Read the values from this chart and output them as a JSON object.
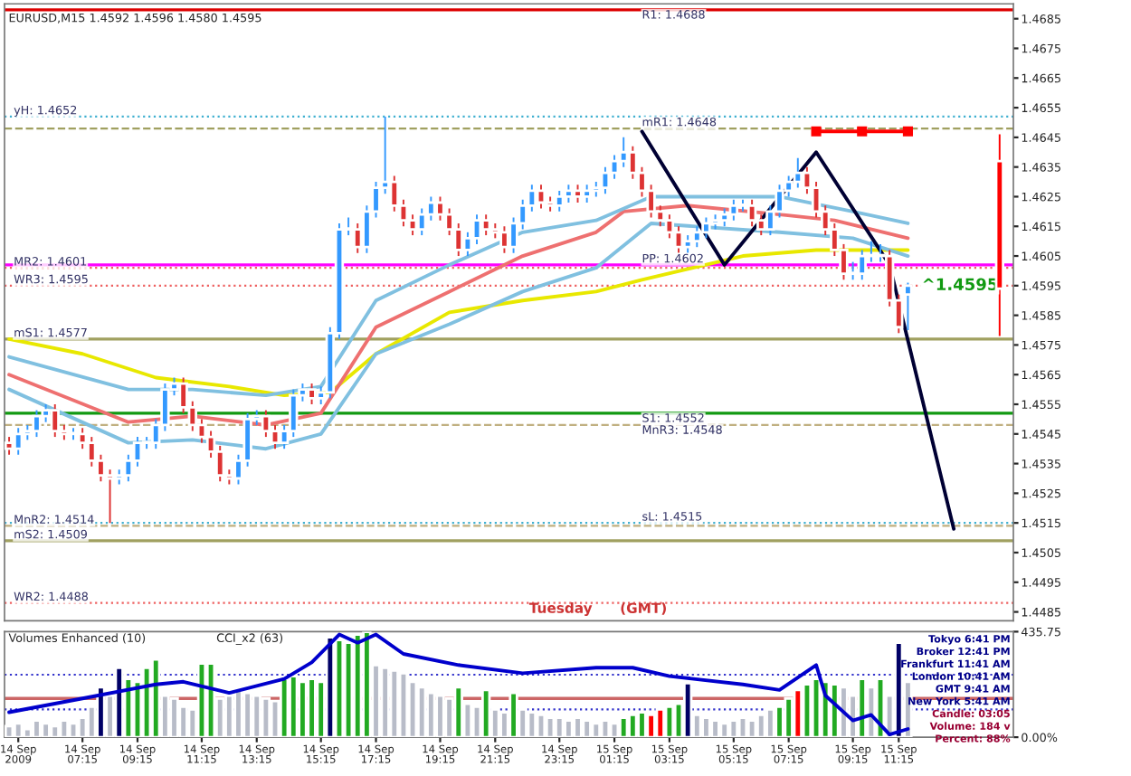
{
  "chart_data": [
    {
      "type": "candlestick",
      "title": "EURUSD,M15 1.4592 1.4596 1.4580 1.4595",
      "categories": [
        null,
        null,
        null,
        null,
        null,
        null,
        null,
        null,
        null,
        null,
        null,
        null,
        null,
        null,
        null,
        null,
        null,
        null,
        null,
        null,
        null,
        null,
        null,
        null,
        null,
        null,
        null,
        null,
        null,
        null,
        null,
        null,
        null,
        null,
        null,
        null,
        null,
        null,
        null,
        null,
        null,
        null,
        null,
        null,
        null,
        null,
        null,
        null,
        null,
        null,
        null,
        null,
        null,
        null,
        null,
        null,
        null,
        null,
        null,
        null,
        null,
        null,
        null,
        null,
        null,
        null,
        null,
        null,
        null,
        null,
        null,
        null,
        null,
        null,
        null,
        null,
        null,
        null,
        null,
        null,
        null,
        null,
        null,
        null,
        null,
        null,
        null,
        null,
        null,
        null,
        null,
        null,
        null,
        null,
        null,
        null,
        null,
        null,
        null,
        null,
        null,
        null,
        null,
        null,
        null,
        null,
        null,
        null,
        null,
        null
      ],
      "colors": [
        "#dd3333",
        "#3399ff",
        "#3399ff",
        "#3399ff",
        "#3399ff",
        "#dd3333",
        "#dd3333",
        "#3399ff",
        "#dd3333",
        "#dd3333",
        "#dd3333",
        "#dd3333",
        "#3399ff",
        "#3399ff",
        "#3399ff",
        "#3399ff",
        "#3399ff",
        "#3399ff",
        "#3399ff",
        "#dd3333",
        "#dd3333",
        "#dd3333",
        "#dd3333",
        "#dd3333",
        "#dd3333",
        "#3399ff",
        "#3399ff",
        "#3399ff",
        "#dd3333",
        "#dd3333",
        "#3399ff",
        "#3399ff",
        "#3399ff",
        "#dd3333",
        "#3399ff",
        "#3399ff",
        "#3399ff",
        "#3399ff",
        "#dd3333",
        "#3399ff",
        "#3399ff",
        "#3399ff",
        "#dd3333",
        "#dd3333",
        "#dd3333",
        "#3399ff",
        "#3399ff",
        "#dd3333",
        "#dd3333",
        "#dd3333",
        "#3399ff",
        "#3399ff",
        "#dd3333",
        "#dd3333",
        "#dd3333",
        "#3399ff",
        "#3399ff",
        "#3399ff",
        "#dd3333",
        "#dd3333",
        "#3399ff",
        "#3399ff",
        "#dd3333",
        "#3399ff",
        "#3399ff",
        "#3399ff",
        "#3399ff",
        "#3399ff",
        "#dd3333",
        "#dd3333",
        "#dd3333",
        "#dd3333",
        "#dd3333",
        "#dd3333",
        "#3399ff",
        "#3399ff",
        "#3399ff",
        "#3399ff",
        "#3399ff",
        "#3399ff",
        "#3399ff",
        "#dd3333",
        "#dd3333",
        "#3399ff",
        "#3399ff",
        "#3399ff",
        "#3399ff",
        "#dd3333",
        "#dd3333",
        "#dd3333",
        "#dd3333",
        "#dd3333",
        "#3399ff",
        "#3399ff",
        "#3399ff",
        "#3399ff",
        "#dd3333",
        "#dd3333",
        "#3399ff",
        null,
        null,
        null,
        null,
        null,
        null,
        null,
        null,
        null,
        "#ff0000",
        null
      ],
      "ohlc": [
        [
          1.4542,
          1.4544,
          1.4538,
          1.454
        ],
        [
          1.454,
          1.4547,
          1.4538,
          1.4545
        ],
        [
          1.4545,
          1.4548,
          1.4543,
          1.4546
        ],
        [
          1.4546,
          1.4553,
          1.4544,
          1.4551
        ],
        [
          1.4551,
          1.4555,
          1.4549,
          1.4553
        ],
        [
          1.4553,
          1.4555,
          1.4544,
          1.4546
        ],
        [
          1.4546,
          1.4548,
          1.4543,
          1.4545
        ],
        [
          1.4545,
          1.4547,
          1.4543,
          1.4545
        ],
        [
          1.4545,
          1.4547,
          1.454,
          1.4542
        ],
        [
          1.4542,
          1.4544,
          1.4534,
          1.4536
        ],
        [
          1.4536,
          1.4538,
          1.4529,
          1.4531
        ],
        [
          1.4531,
          1.4533,
          1.4515,
          1.453
        ],
        [
          1.453,
          1.4533,
          1.4528,
          1.4531
        ],
        [
          1.4531,
          1.4538,
          1.4529,
          1.4536
        ],
        [
          1.4536,
          1.4544,
          1.4534,
          1.4542
        ],
        [
          1.4542,
          1.4544,
          1.454,
          1.4542
        ],
        [
          1.4542,
          1.455,
          1.454,
          1.4548
        ],
        [
          1.4548,
          1.4562,
          1.4546,
          1.456
        ],
        [
          1.456,
          1.4564,
          1.4558,
          1.4562
        ],
        [
          1.4562,
          1.4564,
          1.4552,
          1.4554
        ],
        [
          1.4554,
          1.4556,
          1.4546,
          1.4548
        ],
        [
          1.4548,
          1.455,
          1.4542,
          1.4544
        ],
        [
          1.4544,
          1.4546,
          1.4537,
          1.4539
        ],
        [
          1.4539,
          1.4541,
          1.4529,
          1.4531
        ],
        [
          1.4531,
          1.4533,
          1.4528,
          1.453
        ],
        [
          1.453,
          1.4538,
          1.4528,
          1.4536
        ],
        [
          1.4536,
          1.4552,
          1.4534,
          1.455
        ],
        [
          1.455,
          1.4553,
          1.4548,
          1.4551
        ],
        [
          1.4551,
          1.4553,
          1.4544,
          1.4546
        ],
        [
          1.4546,
          1.4548,
          1.454,
          1.4542
        ],
        [
          1.4542,
          1.4548,
          1.454,
          1.4546
        ],
        [
          1.4546,
          1.456,
          1.4544,
          1.4558
        ],
        [
          1.4558,
          1.4562,
          1.4556,
          1.456
        ],
        [
          1.456,
          1.4562,
          1.4555,
          1.4557
        ],
        [
          1.4557,
          1.4561,
          1.4555,
          1.4559
        ],
        [
          1.4559,
          1.4581,
          1.4557,
          1.4579
        ],
        [
          1.4579,
          1.4616,
          1.4577,
          1.4614
        ],
        [
          1.4614,
          1.4618,
          1.4612,
          1.4614
        ],
        [
          1.4614,
          1.4616,
          1.4606,
          1.4608
        ],
        [
          1.4608,
          1.4622,
          1.4606,
          1.462
        ],
        [
          1.462,
          1.463,
          1.4618,
          1.4628
        ],
        [
          1.4628,
          1.4652,
          1.4626,
          1.463
        ],
        [
          1.463,
          1.4632,
          1.462,
          1.4622
        ],
        [
          1.4622,
          1.4624,
          1.4615,
          1.4617
        ],
        [
          1.4617,
          1.4619,
          1.4612,
          1.4614
        ],
        [
          1.4614,
          1.4621,
          1.4612,
          1.4619
        ],
        [
          1.4619,
          1.4625,
          1.4617,
          1.4623
        ],
        [
          1.4623,
          1.4625,
          1.4617,
          1.4619
        ],
        [
          1.4619,
          1.4621,
          1.4612,
          1.4614
        ],
        [
          1.4614,
          1.4616,
          1.4605,
          1.4607
        ],
        [
          1.4607,
          1.4613,
          1.4605,
          1.4611
        ],
        [
          1.4611,
          1.4619,
          1.4609,
          1.4617
        ],
        [
          1.4617,
          1.4619,
          1.4612,
          1.4614
        ],
        [
          1.4614,
          1.4616,
          1.4611,
          1.4613
        ],
        [
          1.4613,
          1.4615,
          1.4606,
          1.4608
        ],
        [
          1.4608,
          1.4618,
          1.4606,
          1.4616
        ],
        [
          1.4616,
          1.4624,
          1.4614,
          1.4622
        ],
        [
          1.4622,
          1.4629,
          1.462,
          1.4627
        ],
        [
          1.4627,
          1.4629,
          1.4621,
          1.4623
        ],
        [
          1.4623,
          1.4625,
          1.462,
          1.4622
        ],
        [
          1.4622,
          1.4627,
          1.462,
          1.4625
        ],
        [
          1.4625,
          1.4629,
          1.4623,
          1.4627
        ],
        [
          1.4627,
          1.4629,
          1.4623,
          1.4625
        ],
        [
          1.4625,
          1.4629,
          1.4623,
          1.4627
        ],
        [
          1.4627,
          1.463,
          1.4625,
          1.4628
        ],
        [
          1.4628,
          1.4635,
          1.4626,
          1.4633
        ],
        [
          1.4633,
          1.4639,
          1.4631,
          1.4637
        ],
        [
          1.4637,
          1.4645,
          1.4635,
          1.464
        ],
        [
          1.464,
          1.4642,
          1.4631,
          1.4633
        ],
        [
          1.4633,
          1.4635,
          1.4625,
          1.4627
        ],
        [
          1.4627,
          1.4629,
          1.4618,
          1.462
        ],
        [
          1.462,
          1.4622,
          1.4615,
          1.4617
        ],
        [
          1.4617,
          1.4619,
          1.4611,
          1.4613
        ],
        [
          1.4613,
          1.4615,
          1.4606,
          1.4608
        ],
        [
          1.4608,
          1.4612,
          1.4606,
          1.461
        ],
        [
          1.461,
          1.4615,
          1.4608,
          1.4613
        ],
        [
          1.4613,
          1.4618,
          1.4611,
          1.4616
        ],
        [
          1.4616,
          1.4619,
          1.4614,
          1.4617
        ],
        [
          1.4617,
          1.4621,
          1.4615,
          1.4619
        ],
        [
          1.4619,
          1.4624,
          1.4617,
          1.4622
        ],
        [
          1.4622,
          1.4624,
          1.462,
          1.4622
        ],
        [
          1.4622,
          1.4624,
          1.4615,
          1.4617
        ],
        [
          1.4617,
          1.4619,
          1.4612,
          1.4614
        ],
        [
          1.4614,
          1.4622,
          1.4612,
          1.462
        ],
        [
          1.462,
          1.4629,
          1.4618,
          1.4627
        ],
        [
          1.4627,
          1.4632,
          1.4625,
          1.463
        ],
        [
          1.463,
          1.4638,
          1.4628,
          1.4633
        ],
        [
          1.4633,
          1.4635,
          1.4626,
          1.4628
        ],
        [
          1.4628,
          1.463,
          1.4618,
          1.462
        ],
        [
          1.462,
          1.4622,
          1.4612,
          1.4614
        ],
        [
          1.4614,
          1.4616,
          1.4605,
          1.4607
        ],
        [
          1.4607,
          1.4609,
          1.4597,
          1.4599
        ],
        [
          1.4599,
          1.4603,
          1.4597,
          1.4599
        ],
        [
          1.4599,
          1.4607,
          1.4597,
          1.4605
        ],
        [
          1.4605,
          1.461,
          1.4603,
          1.4605
        ],
        [
          1.4605,
          1.4609,
          1.4603,
          1.4605
        ],
        [
          1.4605,
          1.4607,
          1.4588,
          1.459
        ],
        [
          1.459,
          1.4592,
          1.4579,
          1.4581
        ],
        [
          1.4592,
          1.4596,
          1.458,
          1.4595
        ],
        null,
        null,
        null,
        null,
        null,
        null,
        null,
        null,
        null,
        [
          1.4637,
          1.4646,
          1.4578,
          1.4594
        ],
        null
      ],
      "series": [
        {
          "type": "line",
          "color": "#e8e800",
          "values": [
            1.4577,
            null,
            null,
            null,
            null,
            null,
            null,
            null,
            1.4572,
            null,
            null,
            null,
            null,
            null,
            null,
            null,
            1.4564,
            null,
            null,
            null,
            null,
            null,
            null,
            null,
            1.4561,
            null,
            null,
            null,
            null,
            null,
            1.4558,
            null,
            null,
            null,
            null,
            1.4559,
            null,
            null,
            null,
            null,
            1.4572,
            null,
            null,
            null,
            null,
            null,
            null,
            null,
            1.4586,
            null,
            null,
            null,
            null,
            null,
            null,
            null,
            1.459,
            null,
            null,
            null,
            null,
            null,
            null,
            null,
            1.4593,
            null,
            null,
            null,
            null,
            1.4597,
            null,
            null,
            null,
            null,
            null,
            null,
            null,
            null,
            null,
            null,
            1.4605,
            null,
            null,
            null,
            null,
            null,
            null,
            null,
            1.4607,
            null,
            null,
            null,
            null,
            null,
            1.4607,
            null,
            null,
            null,
            1.4607,
            null,
            null,
            null,
            null,
            null,
            null,
            null,
            null,
            null,
            null,
            null
          ]
        },
        {
          "type": "line",
          "color": "#ee7070",
          "values": [
            1.4565,
            null,
            null,
            null,
            null,
            null,
            null,
            null,
            null,
            null,
            null,
            null,
            null,
            1.4549,
            null,
            null,
            null,
            null,
            null,
            null,
            1.4551,
            null,
            null,
            null,
            null,
            null,
            null,
            null,
            1.4548,
            null,
            null,
            null,
            null,
            null,
            1.4552,
            null,
            null,
            null,
            null,
            null,
            1.4581,
            null,
            null,
            null,
            null,
            null,
            null,
            null,
            1.4593,
            null,
            null,
            null,
            null,
            null,
            null,
            null,
            1.4605,
            null,
            null,
            null,
            null,
            null,
            null,
            null,
            1.4613,
            null,
            null,
            1.462,
            null,
            null,
            null,
            null,
            null,
            null,
            1.4622,
            null,
            null,
            null,
            null,
            null,
            null,
            null,
            null,
            null,
            1.4619,
            null,
            null,
            null,
            null,
            null,
            1.4617,
            null,
            null,
            null,
            null,
            null,
            null,
            null,
            1.4611,
            null,
            null,
            null,
            null,
            null,
            null,
            null,
            null,
            null,
            null,
            null
          ]
        },
        {
          "type": "line",
          "color": "#80c0e0",
          "values": [
            1.4571,
            null,
            null,
            null,
            null,
            null,
            null,
            null,
            null,
            null,
            null,
            null,
            null,
            1.456,
            null,
            null,
            null,
            null,
            null,
            null,
            1.456,
            null,
            null,
            null,
            null,
            null,
            null,
            null,
            1.4558,
            null,
            null,
            null,
            null,
            null,
            1.4561,
            null,
            null,
            null,
            null,
            null,
            1.459,
            null,
            null,
            null,
            null,
            null,
            null,
            null,
            1.4602,
            null,
            null,
            null,
            null,
            null,
            null,
            null,
            1.4613,
            null,
            null,
            null,
            null,
            null,
            null,
            null,
            1.4617,
            null,
            null,
            null,
            null,
            null,
            1.4625,
            null,
            null,
            null,
            null,
            null,
            null,
            null,
            null,
            null,
            null,
            null,
            null,
            null,
            1.4625,
            null,
            null,
            null,
            null,
            null,
            null,
            null,
            1.462,
            null,
            null,
            null,
            null,
            null,
            1.4616,
            null,
            null,
            null,
            null,
            null,
            null,
            null,
            null,
            null,
            null,
            null
          ]
        },
        {
          "type": "line",
          "color": "#80c0e0",
          "values": [
            1.456,
            null,
            null,
            null,
            null,
            null,
            null,
            null,
            null,
            null,
            null,
            null,
            null,
            1.4542,
            null,
            null,
            null,
            null,
            null,
            null,
            1.4543,
            null,
            null,
            null,
            null,
            null,
            null,
            null,
            1.454,
            null,
            null,
            null,
            null,
            null,
            1.4545,
            null,
            null,
            null,
            null,
            null,
            1.4572,
            null,
            null,
            null,
            null,
            null,
            null,
            null,
            1.4582,
            null,
            null,
            null,
            null,
            null,
            null,
            null,
            1.4593,
            null,
            null,
            null,
            null,
            null,
            null,
            null,
            1.4601,
            null,
            null,
            null,
            null,
            null,
            1.4616,
            null,
            null,
            null,
            null,
            null,
            null,
            null,
            null,
            null,
            null,
            null,
            null,
            null,
            1.4613,
            null,
            null,
            null,
            null,
            null,
            null,
            null,
            1.4611,
            null,
            null,
            null,
            null,
            null,
            1.4605,
            null,
            null,
            null,
            null,
            null,
            null,
            null,
            null,
            null,
            null,
            null
          ]
        },
        {
          "type": "line",
          "color": "#000033",
          "values": [
            null,
            null,
            null,
            null,
            null,
            null,
            null,
            null,
            null,
            null,
            null,
            null,
            null,
            null,
            null,
            null,
            null,
            null,
            null,
            null,
            null,
            null,
            null,
            null,
            null,
            null,
            null,
            null,
            null,
            null,
            null,
            null,
            null,
            null,
            null,
            null,
            null,
            null,
            null,
            null,
            null,
            null,
            null,
            null,
            null,
            null,
            null,
            null,
            null,
            null,
            null,
            null,
            null,
            null,
            null,
            null,
            null,
            null,
            null,
            null,
            null,
            null,
            null,
            null,
            null,
            null,
            null,
            null,
            null,
            1.4647,
            null,
            null,
            null,
            null,
            null,
            null,
            null,
            null,
            1.4602,
            null,
            null,
            null,
            null,
            null,
            null,
            null,
            null,
            null,
            1.464,
            null,
            null,
            null,
            null,
            null,
            null,
            null,
            1.4602,
            null,
            null,
            null,
            null,
            null,
            null,
            1.4513,
            null,
            null,
            null,
            null,
            null,
            null
          ]
        },
        {
          "type": "line",
          "color": "#ff0000",
          "marker": "square",
          "values": [
            null,
            null,
            null,
            null,
            null,
            null,
            null,
            null,
            null,
            null,
            null,
            null,
            null,
            null,
            null,
            null,
            null,
            null,
            null,
            null,
            null,
            null,
            null,
            null,
            null,
            null,
            null,
            null,
            null,
            null,
            null,
            null,
            null,
            null,
            null,
            null,
            null,
            null,
            null,
            null,
            null,
            null,
            null,
            null,
            null,
            null,
            null,
            null,
            null,
            null,
            null,
            null,
            null,
            null,
            null,
            null,
            null,
            null,
            null,
            null,
            null,
            null,
            null,
            null,
            null,
            null,
            null,
            null,
            null,
            null,
            null,
            null,
            null,
            null,
            null,
            null,
            null,
            null,
            null,
            null,
            null,
            null,
            null,
            null,
            null,
            null,
            null,
            null,
            1.4647,
            null,
            null,
            null,
            null,
            1.4647,
            null,
            null,
            null,
            null,
            1.4647,
            null,
            null,
            null,
            null,
            null,
            null,
            null,
            null,
            null,
            null,
            null
          ]
        }
      ],
      "ref_lines": [
        {
          "axis": "y",
          "value": 1.4688,
          "label": "R1: 1.4688",
          "color": "#dd0000",
          "line_style": "solid"
        },
        {
          "axis": "y",
          "value": 1.4652,
          "label": "yH: 1.4652",
          "color": "#40b0d0",
          "line_style": "dotted"
        },
        {
          "axis": "y",
          "value": 1.4648,
          "label": "mR1: 1.4648",
          "color": "#a0a060",
          "line_style": "dashed"
        },
        {
          "axis": "y",
          "value": 1.4601,
          "label": "MR2: 1.4601",
          "color": "#ee6060",
          "line_style": "dotted"
        },
        {
          "axis": "y",
          "value": 1.4602,
          "label": "PP: 1.4602",
          "color": "#ff00ff",
          "line_style": "solid"
        },
        {
          "axis": "y",
          "value": 1.4595,
          "label": "WR3: 1.4595",
          "color": "#ee6060",
          "line_style": "dotted"
        },
        {
          "axis": "y",
          "value": 1.4577,
          "label": "mS1: 1.4577",
          "color": "#a0a060",
          "line_style": "solid"
        },
        {
          "axis": "y",
          "value": 1.4548,
          "label": "MnR3: 1.4548",
          "color": "#c0b080",
          "line_style": "dashed"
        },
        {
          "axis": "y",
          "value": 1.4552,
          "label": "S1: 1.4552",
          "color": "#119911",
          "line_style": "solid"
        },
        {
          "axis": "y",
          "value": 1.4514,
          "label": "MnR2: 1.4514",
          "color": "#c0b080",
          "line_style": "dashed"
        },
        {
          "axis": "y",
          "value": 1.4515,
          "label": "sL: 1.4515",
          "color": "#40b0d0",
          "line_style": "dotted"
        },
        {
          "axis": "y",
          "value": 1.4509,
          "label": "mS2: 1.4509",
          "color": "#a0a060",
          "line_style": "solid"
        },
        {
          "axis": "y",
          "value": 1.4488,
          "label": "WR2: 1.4488",
          "color": "#ee6060",
          "line_style": "dotted"
        }
      ],
      "annotations": [
        "Tuesday",
        "(GMT)",
        {
          "text": "^1.4595",
          "y": 1.4595
        }
      ],
      "ylim": [
        1.4482,
        1.469
      ],
      "yticks": [
        1.4485,
        1.4495,
        1.4505,
        1.4515,
        1.4525,
        1.4535,
        1.4545,
        1.4555,
        1.4565,
        1.4575,
        1.4585,
        1.4595,
        1.4605,
        1.4615,
        1.4625,
        1.4635,
        1.4645,
        1.4655,
        1.4665,
        1.4675,
        1.4685
      ],
      "tick_labels": "y",
      "grid": false,
      "legend": false
    },
    {
      "type": "bar",
      "title": "Volumes Enhanced (10)",
      "categories": [
        null,
        "14 Sep 2009",
        null,
        null,
        null,
        null,
        null,
        null,
        "14 Sep 07:15",
        null,
        null,
        null,
        null,
        null,
        "14 Sep 09:15",
        null,
        null,
        null,
        null,
        null,
        null,
        "14 Sep 11:15",
        null,
        null,
        null,
        null,
        null,
        "14 Sep 13:15",
        null,
        null,
        null,
        null,
        null,
        null,
        "14 Sep 15:15",
        null,
        null,
        null,
        null,
        null,
        "14 Sep 17:15",
        null,
        null,
        null,
        null,
        null,
        null,
        "14 Sep 19:15",
        null,
        null,
        null,
        null,
        null,
        "14 Sep 21:15",
        null,
        null,
        null,
        null,
        null,
        null,
        "14 Sep 23:15",
        null,
        null,
        null,
        null,
        null,
        "15 Sep 01:15",
        null,
        null,
        null,
        null,
        null,
        "15 Sep 03:15",
        null,
        null,
        null,
        null,
        null,
        null,
        "15 Sep 05:15",
        null,
        null,
        null,
        null,
        null,
        "15 Sep 07:15",
        null,
        null,
        null,
        null,
        null,
        null,
        "15 Sep 09:15",
        null,
        null,
        null,
        null,
        "15 Sep 11:15",
        null,
        null,
        null,
        null,
        null,
        null,
        null,
        null,
        null,
        null,
        null,
        null
      ],
      "series": [
        {
          "type": "bar",
          "values": [
            46,
            57,
            34,
            69,
            57,
            46,
            69,
            57,
            80,
            126,
            206,
            172,
            287,
            241,
            229,
            287,
            321,
            172,
            160,
            126,
            115,
            304,
            304,
            160,
            172,
            195,
            183,
            172,
            160,
            149,
            241,
            252,
            229,
            241,
            229,
            413,
            401,
            390,
            424,
            435,
            298,
            287,
            275,
            264,
            229,
            206,
            183,
            172,
            160,
            206,
            138,
            126,
            195,
            115,
            103,
            183,
            115,
            103,
            92,
            80,
            80,
            69,
            80,
            69,
            57,
            69,
            57,
            80,
            92,
            103,
            92,
            115,
            126,
            138,
            223,
            92,
            80,
            69,
            57,
            69,
            80,
            69,
            92,
            115,
            126,
            160,
            195,
            218,
            241,
            229,
            218,
            206,
            172,
            241,
            206,
            241,
            172,
            390,
            229,
            null,
            null,
            null,
            null,
            null,
            null,
            null,
            null,
            null,
            null,
            null
          ],
          "colors": [
            "#b8bcc8",
            "#b8bcc8",
            "#b8bcc8",
            "#b8bcc8",
            "#b8bcc8",
            "#b8bcc8",
            "#b8bcc8",
            "#b8bcc8",
            "#b8bcc8",
            "#b8bcc8",
            "#000066",
            "#b8bcc8",
            "#000066",
            "#22aa22",
            "#22aa22",
            "#22aa22",
            "#22aa22",
            "#b8bcc8",
            "#b8bcc8",
            "#b8bcc8",
            "#b8bcc8",
            "#22aa22",
            "#22aa22",
            "#b8bcc8",
            "#b8bcc8",
            "#b8bcc8",
            "#b8bcc8",
            "#b8bcc8",
            "#b8bcc8",
            "#b8bcc8",
            "#22aa22",
            "#22aa22",
            "#22aa22",
            "#22aa22",
            "#22aa22",
            "#000066",
            "#22aa22",
            "#22aa22",
            "#22aa22",
            "#22aa22",
            "#b8bcc8",
            "#b8bcc8",
            "#b8bcc8",
            "#b8bcc8",
            "#b8bcc8",
            "#b8bcc8",
            "#b8bcc8",
            "#b8bcc8",
            "#b8bcc8",
            "#22aa22",
            "#b8bcc8",
            "#b8bcc8",
            "#22aa22",
            "#b8bcc8",
            "#b8bcc8",
            "#22aa22",
            "#b8bcc8",
            "#b8bcc8",
            "#b8bcc8",
            "#b8bcc8",
            "#b8bcc8",
            "#b8bcc8",
            "#b8bcc8",
            "#b8bcc8",
            "#b8bcc8",
            "#b8bcc8",
            "#b8bcc8",
            "#22aa22",
            "#22aa22",
            "#22aa22",
            "#ff0000",
            "#ff0000",
            "#22aa22",
            "#22aa22",
            "#000066",
            "#b8bcc8",
            "#b8bcc8",
            "#b8bcc8",
            "#b8bcc8",
            "#b8bcc8",
            "#b8bcc8",
            "#b8bcc8",
            "#b8bcc8",
            "#b8bcc8",
            "#22aa22",
            "#22aa22",
            "#ff0000",
            "#22aa22",
            "#22aa22",
            "#22aa22",
            "#22aa22",
            "#b8bcc8",
            "#b8bcc8",
            "#22aa22",
            "#b8bcc8",
            "#22aa22",
            "#b8bcc8",
            "#000066",
            "#b8bcc8",
            null,
            null,
            null,
            null,
            null,
            null,
            null,
            null,
            null,
            null,
            null
          ]
        },
        {
          "type": "line",
          "color": "#0000cc",
          "values": [
            103,
            null,
            null,
            null,
            null,
            null,
            null,
            null,
            160,
            null,
            null,
            null,
            null,
            null,
            null,
            null,
            218,
            null,
            null,
            229,
            null,
            null,
            null,
            null,
            183,
            null,
            null,
            null,
            null,
            null,
            241,
            null,
            null,
            309,
            null,
            null,
            424,
            null,
            390,
            null,
            424,
            null,
            null,
            344,
            null,
            null,
            null,
            null,
            null,
            298,
            null,
            null,
            null,
            null,
            null,
            null,
            264,
            null,
            null,
            null,
            null,
            null,
            null,
            null,
            287,
            null,
            null,
            null,
            287,
            null,
            null,
            null,
            252,
            null,
            null,
            null,
            null,
            null,
            null,
            null,
            218,
            null,
            null,
            null,
            195,
            null,
            null,
            null,
            298,
            172,
            null,
            null,
            69,
            null,
            92,
            null,
            11,
            null,
            34,
            null,
            null,
            null,
            null,
            null,
            null,
            null,
            null,
            null,
            null,
            null
          ]
        }
      ],
      "ref_lines": [
        {
          "axis": "y",
          "value": 258,
          "color": "#3333cc",
          "line_style": "dotted"
        },
        {
          "axis": "y",
          "value": 115,
          "color": "#3333cc",
          "line_style": "dotted"
        },
        {
          "axis": "y",
          "value": 160,
          "color": "#cc6666",
          "line_style": "solid"
        }
      ],
      "annotations": [
        "CCI_x2 (63)",
        "Tokyo 6:41 PM",
        "Broker 12:41 PM",
        "Frankfurt 11:41 AM",
        "London 10:41 AM",
        "GMT 9:41 AM",
        "New York 5:41 AM",
        "Candle: 03:05",
        "Volume: 184 v",
        "Percent: 88%"
      ],
      "ylim": [
        0,
        435.75
      ],
      "yticks": [
        {
          "value": 0,
          "label": "0.00%"
        },
        435.75
      ],
      "grid": false,
      "legend": false
    }
  ]
}
